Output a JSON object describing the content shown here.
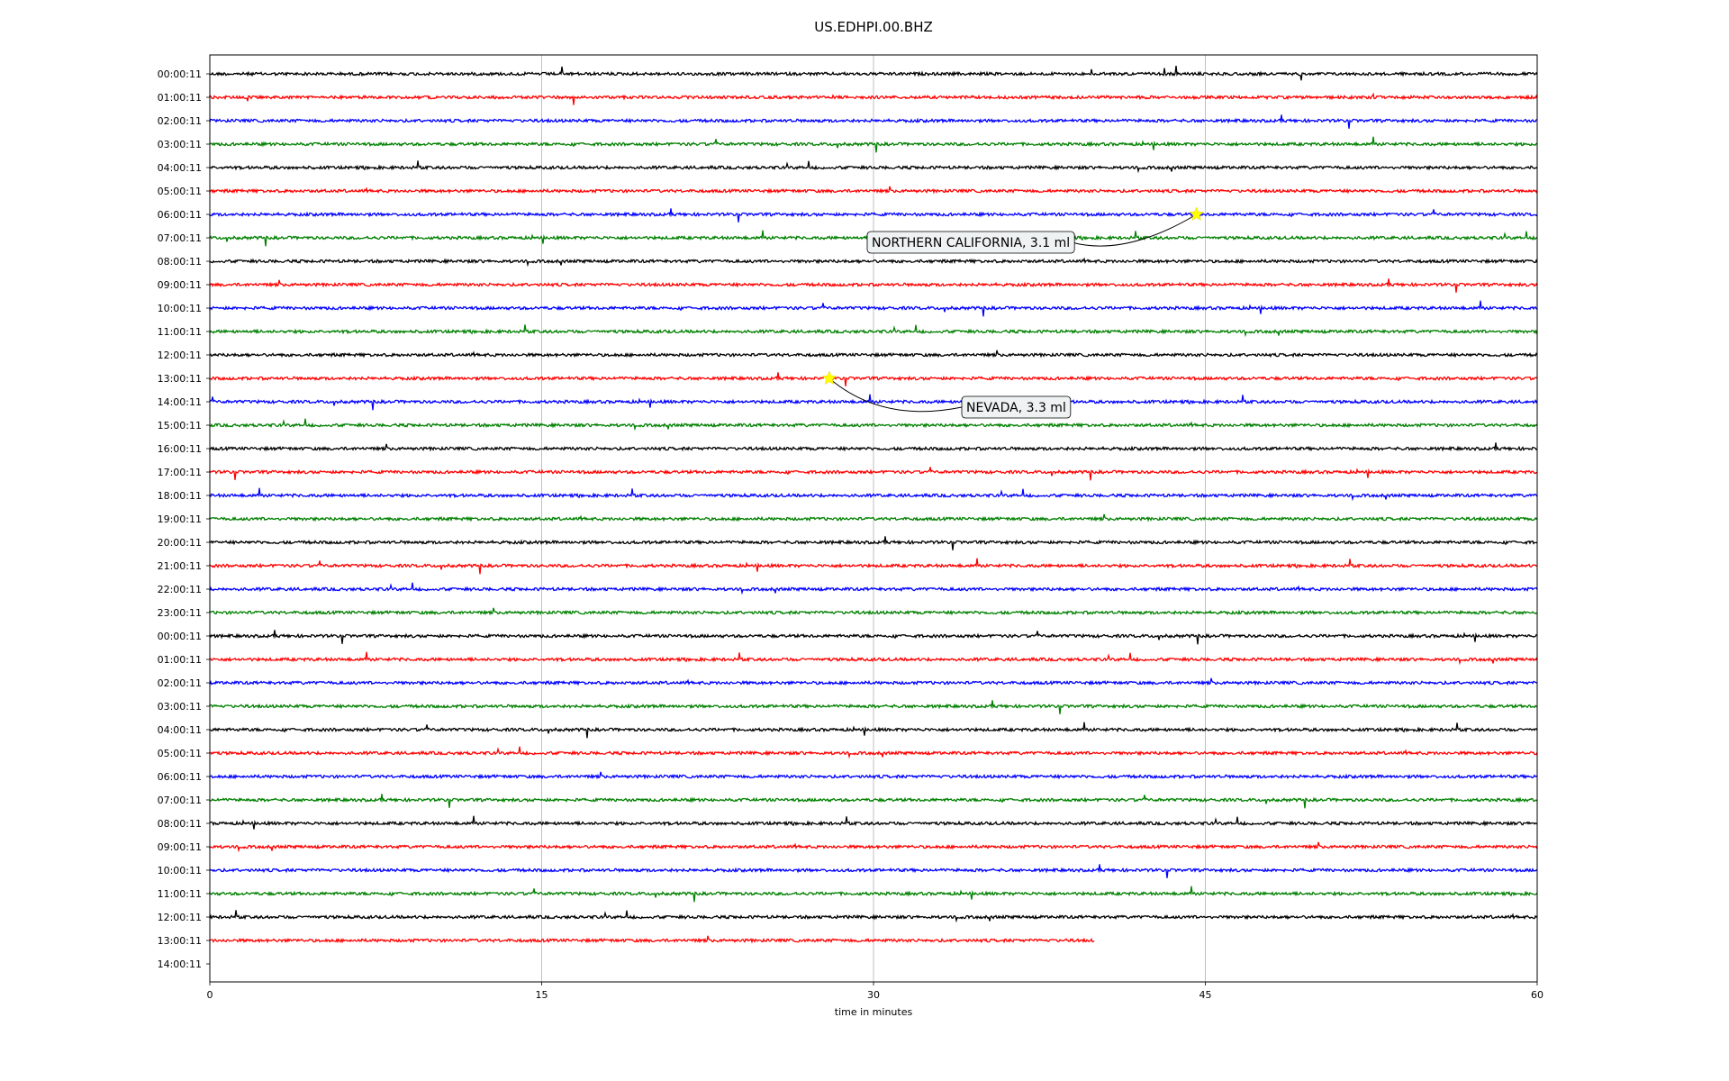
{
  "chart_data": {
    "type": "line",
    "title": "US.EDHPI.00.BHZ",
    "xlabel": "time in minutes",
    "ylabel": "",
    "xlim": [
      0,
      60
    ],
    "xticks": [
      "0",
      "15",
      "30",
      "45",
      "60"
    ],
    "grid": "vertical lines at 15, 30, 45",
    "row_labels": [
      "00:00:11",
      "01:00:11",
      "02:00:11",
      "03:00:11",
      "04:00:11",
      "05:00:11",
      "06:00:11",
      "07:00:11",
      "08:00:11",
      "09:00:11",
      "10:00:11",
      "11:00:11",
      "12:00:11",
      "13:00:11",
      "14:00:11",
      "15:00:11",
      "16:00:11",
      "17:00:11",
      "18:00:11",
      "19:00:11",
      "20:00:11",
      "21:00:11",
      "22:00:11",
      "23:00:11",
      "00:00:11",
      "01:00:11",
      "02:00:11",
      "03:00:11",
      "04:00:11",
      "05:00:11",
      "06:00:11",
      "07:00:11",
      "08:00:11",
      "09:00:11",
      "10:00:11",
      "11:00:11",
      "12:00:11",
      "13:00:11",
      "14:00:11"
    ],
    "trace_colors": [
      "#000000",
      "#ff0000",
      "#0000ff",
      "#008000"
    ],
    "last_trace_end_minute": 40,
    "events": [
      {
        "label": "NORTHERN CALIFORNIA, 3.1 ml",
        "row": 6,
        "minute": 44.6
      },
      {
        "label": "NEVADA, 3.3 ml",
        "row": 13,
        "minute": 28.0
      }
    ],
    "annotation_box_color": "#eef2f2",
    "star_color": "#ffff00"
  }
}
